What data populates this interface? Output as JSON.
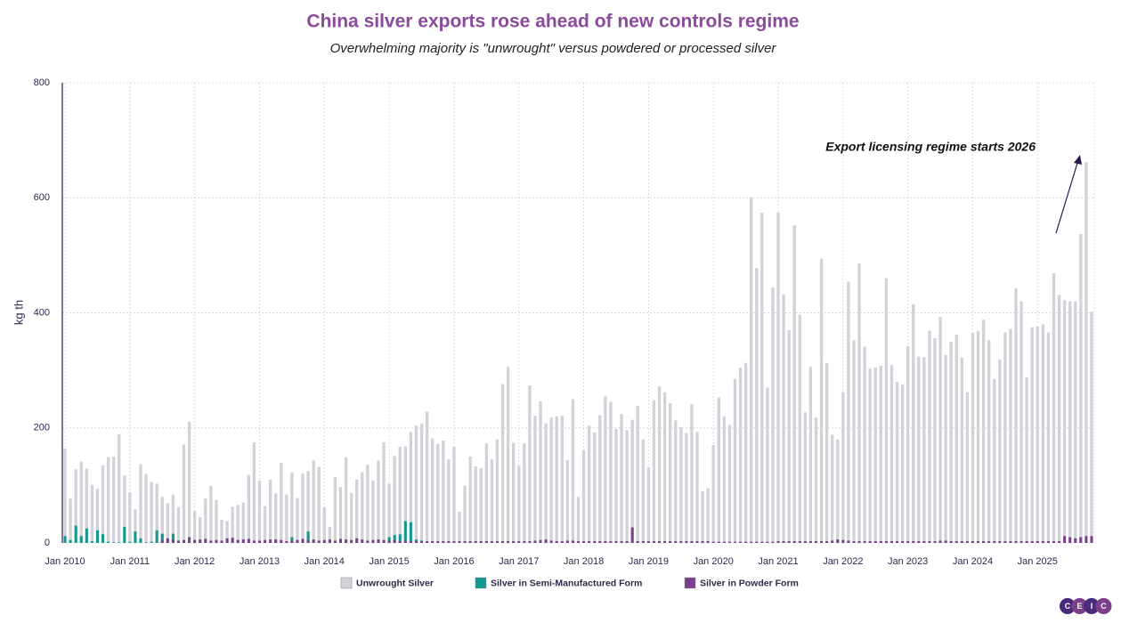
{
  "chart_data": {
    "type": "bar",
    "title": "China silver exports rose ahead of new controls regime",
    "subtitle": "Overwhelming majority is \"unwrought\" versus powdered or processed silver",
    "y_label": "kg th",
    "annotation": "Export licensing regime starts 2026",
    "logo": [
      "C",
      "E",
      "I",
      "C"
    ],
    "categories": [
      "Jan 2010",
      null,
      null,
      null,
      null,
      null,
      null,
      null,
      null,
      null,
      null,
      null,
      "Jan 2011",
      null,
      null,
      null,
      null,
      null,
      null,
      null,
      null,
      null,
      null,
      null,
      "Jan 2012",
      null,
      null,
      null,
      null,
      null,
      null,
      null,
      null,
      null,
      null,
      null,
      "Jan 2013",
      null,
      null,
      null,
      null,
      null,
      null,
      null,
      null,
      null,
      null,
      null,
      "Jan 2014",
      null,
      null,
      null,
      null,
      null,
      null,
      null,
      null,
      null,
      null,
      null,
      "Jan 2015",
      null,
      null,
      null,
      null,
      null,
      null,
      null,
      null,
      null,
      null,
      null,
      "Jan 2016",
      null,
      null,
      null,
      null,
      null,
      null,
      null,
      null,
      null,
      null,
      null,
      "Jan 2017",
      null,
      null,
      null,
      null,
      null,
      null,
      null,
      null,
      null,
      null,
      null,
      "Jan 2018",
      null,
      null,
      null,
      null,
      null,
      null,
      null,
      null,
      null,
      null,
      null,
      "Jan 2019",
      null,
      null,
      null,
      null,
      null,
      null,
      null,
      null,
      null,
      null,
      null,
      "Jan 2020",
      null,
      null,
      null,
      null,
      null,
      null,
      null,
      null,
      null,
      null,
      null,
      "Jan 2021",
      null,
      null,
      null,
      null,
      null,
      null,
      null,
      null,
      null,
      null,
      null,
      "Jan 2022",
      null,
      null,
      null,
      null,
      null,
      null,
      null,
      null,
      null,
      null,
      null,
      "Jan 2023",
      null,
      null,
      null,
      null,
      null,
      null,
      null,
      null,
      null,
      null,
      null,
      "Jan 2024",
      null,
      null,
      null,
      null,
      null,
      null,
      null,
      null,
      null,
      null,
      null,
      "Jan 2025",
      null,
      null,
      null,
      null,
      null,
      null,
      null,
      null,
      null,
      null
    ],
    "series": [
      {
        "name": "Unwrought Silver",
        "color": "#d2d2d8",
        "values": [
          164,
          77,
          128,
          141,
          129,
          101,
          94,
          135,
          149,
          150,
          189,
          117,
          88,
          58,
          137,
          120,
          106,
          103,
          80,
          69,
          84,
          62,
          171,
          211,
          56,
          45,
          77,
          99,
          75,
          40,
          38,
          63,
          66,
          70,
          118,
          175,
          108,
          64,
          110,
          86,
          139,
          84,
          122,
          78,
          121,
          125,
          143,
          132,
          62,
          28,
          115,
          97,
          149,
          87,
          110,
          123,
          136,
          108,
          143,
          175,
          103,
          151,
          167,
          168,
          193,
          204,
          207,
          228,
          182,
          172,
          178,
          145,
          167,
          54,
          100,
          150,
          133,
          130,
          173,
          145,
          180,
          276,
          306,
          174,
          134,
          173,
          274,
          221,
          246,
          208,
          218,
          220,
          221,
          144,
          250,
          80,
          161,
          204,
          192,
          222,
          255,
          245,
          198,
          224,
          196,
          214,
          238,
          180,
          132,
          248,
          272,
          262,
          243,
          213,
          201,
          191,
          241,
          193,
          90,
          95,
          170,
          253,
          220,
          205,
          285,
          305,
          313,
          601,
          478,
          574,
          270,
          444,
          574,
          432,
          370,
          552,
          397,
          227,
          306,
          218,
          494,
          313,
          188,
          180,
          262,
          454,
          352,
          486,
          341,
          303,
          305,
          308,
          460,
          309,
          280,
          275,
          342,
          415,
          324,
          323,
          369,
          356,
          393,
          327,
          350,
          362,
          322,
          262,
          365,
          368,
          388,
          352,
          285,
          319,
          366,
          372,
          443,
          420,
          288,
          375,
          376,
          380,
          366,
          469,
          431,
          422,
          420,
          420,
          537,
          662,
          402
        ]
      },
      {
        "name": "Silver in Semi-Manufactured Form",
        "color": "#11998f",
        "values": [
          12,
          5,
          30,
          12,
          25,
          3,
          22,
          15,
          2,
          1,
          1,
          28,
          2,
          20,
          8,
          1,
          2,
          22,
          16,
          5,
          16,
          3,
          2,
          1,
          1,
          1,
          1,
          1,
          1,
          1,
          1,
          1,
          1,
          1,
          1,
          1,
          1,
          1,
          1,
          2,
          3,
          1,
          10,
          2,
          1,
          20,
          4,
          1,
          2,
          1,
          1,
          1,
          3,
          1,
          1,
          2,
          1,
          1,
          1,
          2,
          10,
          14,
          15,
          38,
          36,
          6,
          4,
          2,
          1,
          1,
          1,
          1,
          1,
          1,
          1,
          1,
          1,
          1,
          1,
          1,
          1,
          1,
          1,
          1,
          1,
          1,
          1,
          1,
          1,
          1,
          1,
          1,
          1,
          1,
          1,
          1,
          1,
          1,
          1,
          1,
          1,
          1,
          1,
          1,
          1,
          1,
          1,
          1,
          1,
          1,
          1,
          1,
          1,
          1,
          1,
          1,
          1,
          1,
          1,
          1,
          1,
          1,
          1,
          1,
          1,
          1,
          1,
          1,
          1,
          1,
          1,
          1,
          1,
          1,
          1,
          1,
          1,
          1,
          1,
          1,
          1,
          1,
          1,
          1,
          1,
          1,
          1,
          1,
          1,
          1,
          1,
          1,
          1,
          1,
          1,
          1,
          1,
          1,
          1,
          1,
          1,
          1,
          1,
          1,
          1,
          1,
          1,
          1,
          1,
          1,
          1,
          1,
          1,
          1,
          1,
          1,
          1,
          1,
          1,
          1,
          1,
          1,
          1,
          1,
          1,
          1,
          1,
          1,
          1,
          1,
          1
        ]
      },
      {
        "name": "Silver in Powder Form",
        "color": "#7b3f8c",
        "values": [
          0,
          0,
          0,
          0,
          0,
          0,
          0,
          0,
          0,
          0,
          0,
          0,
          0,
          0,
          0,
          0,
          0,
          0,
          5,
          8,
          6,
          4,
          5,
          10,
          5,
          6,
          7,
          4,
          5,
          4,
          8,
          9,
          5,
          6,
          7,
          4,
          4,
          5,
          6,
          6,
          5,
          3,
          4,
          5,
          7,
          5,
          6,
          4,
          5,
          6,
          4,
          7,
          6,
          5,
          8,
          6,
          4,
          5,
          6,
          5,
          4,
          5,
          3,
          4,
          3,
          3,
          3,
          3,
          3,
          3,
          3,
          3,
          3,
          3,
          3,
          3,
          3,
          3,
          3,
          3,
          3,
          3,
          3,
          3,
          3,
          3,
          3,
          4,
          5,
          6,
          4,
          3,
          3,
          4,
          4,
          3,
          3,
          3,
          3,
          3,
          3,
          3,
          3,
          3,
          3,
          27,
          3,
          3,
          3,
          3,
          3,
          3,
          3,
          3,
          3,
          3,
          3,
          3,
          3,
          3,
          2,
          2,
          2,
          2,
          2,
          2,
          2,
          2,
          2,
          2,
          2,
          2,
          3,
          3,
          3,
          3,
          3,
          3,
          3,
          3,
          3,
          3,
          4,
          6,
          5,
          4,
          3,
          3,
          3,
          3,
          3,
          3,
          3,
          3,
          3,
          3,
          3,
          3,
          3,
          3,
          3,
          3,
          4,
          4,
          3,
          3,
          3,
          3,
          3,
          3,
          3,
          3,
          3,
          3,
          3,
          3,
          3,
          3,
          3,
          3,
          3,
          3,
          3,
          3,
          3,
          12,
          10,
          8,
          10,
          12,
          12
        ]
      }
    ],
    "ylim": [
      0,
      800
    ],
    "yticks": [
      0,
      200,
      400,
      600,
      800
    ],
    "grid": true
  }
}
